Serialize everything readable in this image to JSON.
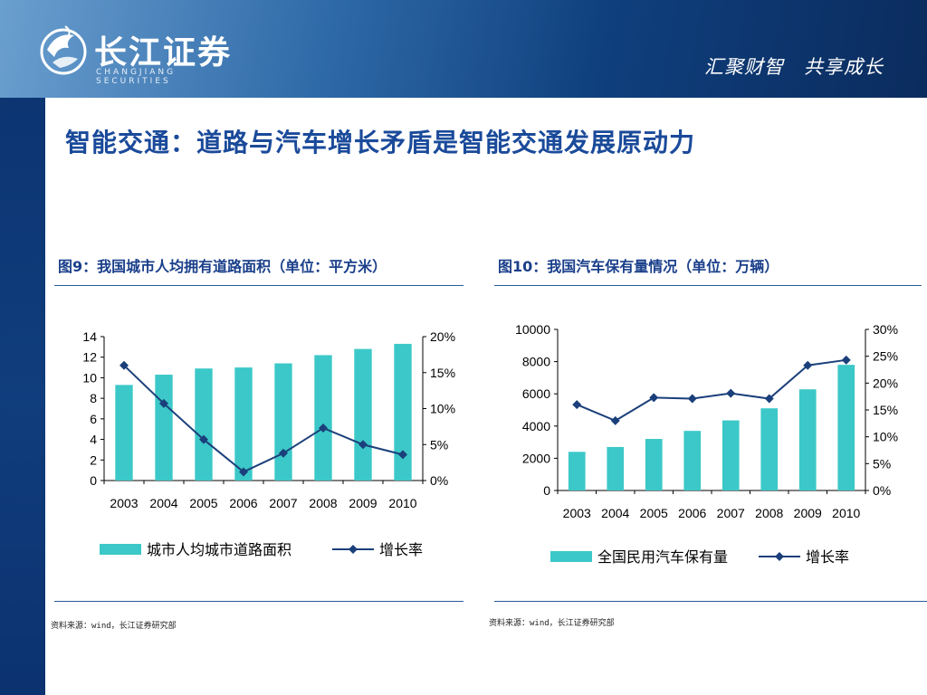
{
  "header": {
    "logo_text": "长江证券",
    "logo_sub": "CHANGJIANG SECURITIES",
    "slogan": "汇聚财智　共享成长"
  },
  "page_title": "智能交通：道路与汽车增长矛盾是智能交通发展原动力",
  "figures": [
    {
      "title": "图9：我国城市人均拥有道路面积（单位：平方米）",
      "source": "资料来源：wind，长江证券研究部"
    },
    {
      "title": "图10：我国汽车保有量情况（单位：万辆）",
      "source": "资料来源：wind，长江证券研究部"
    }
  ],
  "colors": {
    "bar": "#3cc8c8",
    "line": "#1a3f7a",
    "title": "#1a4a9a"
  },
  "chart_data": [
    {
      "type": "bar",
      "categories": [
        "2003",
        "2004",
        "2005",
        "2006",
        "2007",
        "2008",
        "2009",
        "2010"
      ],
      "series": [
        {
          "name": "城市人均城市道路面积",
          "type": "bar",
          "axis": "left",
          "values": [
            9.3,
            10.3,
            10.9,
            11.0,
            11.4,
            12.2,
            12.8,
            13.3
          ]
        },
        {
          "name": "增长率",
          "type": "line",
          "axis": "right",
          "values": [
            0.16,
            0.107,
            0.057,
            0.012,
            0.038,
            0.073,
            0.05,
            0.036
          ]
        }
      ],
      "ylim_left": [
        0,
        14
      ],
      "yticks_left": [
        "0",
        "2",
        "4",
        "6",
        "8",
        "10",
        "12",
        "14"
      ],
      "ylim_right": [
        0,
        0.2
      ],
      "yticks_right": [
        "0%",
        "5%",
        "10%",
        "15%",
        "20%"
      ],
      "grid": false,
      "legend": "bottom"
    },
    {
      "type": "bar",
      "categories": [
        "2003",
        "2004",
        "2005",
        "2006",
        "2007",
        "2008",
        "2009",
        "2010"
      ],
      "series": [
        {
          "name": "全国民用汽车保有量",
          "type": "bar",
          "axis": "left",
          "values": [
            2400,
            2700,
            3200,
            3700,
            4350,
            5100,
            6280,
            7800
          ]
        },
        {
          "name": "增长率",
          "type": "line",
          "axis": "right",
          "values": [
            0.16,
            0.13,
            0.173,
            0.171,
            0.181,
            0.171,
            0.233,
            0.243
          ]
        }
      ],
      "ylim_left": [
        0,
        10000
      ],
      "yticks_left": [
        "0",
        "2000",
        "4000",
        "6000",
        "8000",
        "10000"
      ],
      "ylim_right": [
        0,
        0.3
      ],
      "yticks_right": [
        "0%",
        "5%",
        "10%",
        "15%",
        "20%",
        "25%",
        "30%"
      ],
      "grid": false,
      "legend": "bottom"
    }
  ]
}
